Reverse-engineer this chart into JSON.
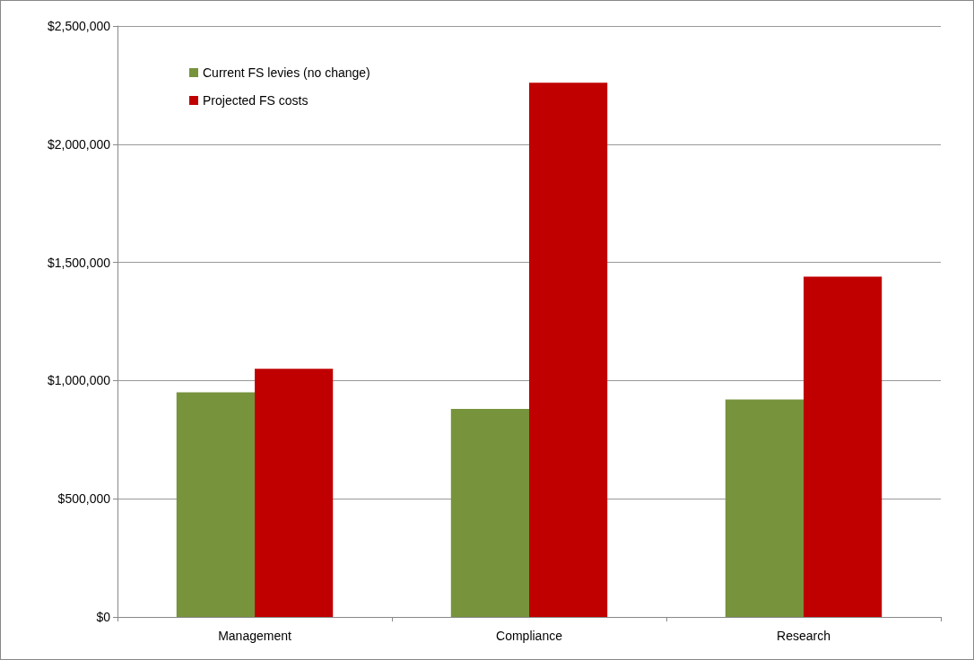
{
  "chart_data": {
    "type": "bar",
    "categories": [
      "Management",
      "Compliance",
      "Research"
    ],
    "series": [
      {
        "name": "Current FS levies (no change)",
        "color": "#77933c",
        "values": [
          950000,
          880000,
          920000
        ]
      },
      {
        "name": "Projected FS costs",
        "color": "#c00000",
        "values": [
          1050000,
          2260000,
          1440000
        ]
      }
    ],
    "ylim": [
      0,
      2500000
    ],
    "yticks": [
      {
        "value": 0,
        "label": "$0"
      },
      {
        "value": 500000,
        "label": "$500,000"
      },
      {
        "value": 1000000,
        "label": "$1,000,000"
      },
      {
        "value": 1500000,
        "label": "$1,500,000"
      },
      {
        "value": 2000000,
        "label": "$2,000,000"
      },
      {
        "value": 2500000,
        "label": "$2,500,000"
      }
    ],
    "grid": "y",
    "legend": "top left"
  }
}
